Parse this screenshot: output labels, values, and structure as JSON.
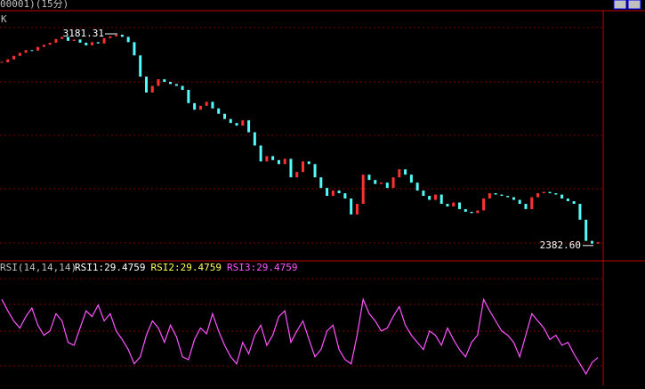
{
  "header": {
    "title": "00001)(15分)"
  },
  "chart_data": [
    {
      "type": "candlestick",
      "title": "K",
      "values": [
        3074,
        3085,
        3098,
        3110,
        3120,
        3118,
        3132,
        3140,
        3148,
        3162,
        3170,
        3155,
        3160,
        3148,
        3138,
        3150,
        3145,
        3165,
        3172,
        3178,
        3170,
        3150,
        3100,
        3020,
        2960,
        2985,
        3010,
        3000,
        2992,
        2985,
        2970,
        2920,
        2895,
        2910,
        2925,
        2900,
        2880,
        2860,
        2845,
        2835,
        2855,
        2810,
        2760,
        2700,
        2720,
        2705,
        2690,
        2710,
        2640,
        2660,
        2700,
        2690,
        2640,
        2600,
        2570,
        2590,
        2580,
        2560,
        2500,
        2540,
        2650,
        2630,
        2615,
        2620,
        2600,
        2640,
        2670,
        2650,
        2620,
        2590,
        2570,
        2555,
        2575,
        2540,
        2530,
        2545,
        2520,
        2510,
        2505,
        2515,
        2560,
        2580,
        2575,
        2570,
        2565,
        2555,
        2540,
        2520,
        2565,
        2580,
        2585,
        2580,
        2575,
        2560,
        2550,
        2540,
        2480,
        2400,
        2390,
        2395
      ],
      "up_color": "#ff3232",
      "down_color": "#54fcfc",
      "ylim": [
        2325,
        3262
      ],
      "high": 3181.31,
      "low": {
        "value": 2382.6,
        "label": "2382.60"
      }
    },
    {
      "type": "line",
      "title": "RSI(14,14,14)",
      "legend": [
        {
          "label": "RSI1:29.4759",
          "color": "#ffffff"
        },
        {
          "label": "RSI2:29.4759",
          "color": "#ffff54"
        },
        {
          "label": "RSI3:29.4759",
          "color": "#ff54ff"
        }
      ],
      "values": [
        70,
        62,
        55,
        50,
        58,
        64,
        52,
        45,
        48,
        60,
        55,
        40,
        38,
        50,
        62,
        58,
        66,
        55,
        60,
        48,
        42,
        35,
        25,
        30,
        45,
        55,
        50,
        40,
        52,
        44,
        30,
        28,
        42,
        50,
        46,
        60,
        48,
        38,
        30,
        25,
        40,
        32,
        45,
        52,
        38,
        45,
        58,
        62,
        40,
        48,
        55,
        42,
        30,
        35,
        48,
        52,
        35,
        28,
        25,
        45,
        70,
        60,
        55,
        48,
        50,
        58,
        65,
        52,
        45,
        40,
        35,
        48,
        45,
        38,
        50,
        42,
        35,
        30,
        40,
        45,
        70,
        62,
        55,
        48,
        45,
        40,
        30,
        45,
        60,
        55,
        50,
        42,
        45,
        38,
        40,
        32,
        25,
        18,
        26,
        29.4759
      ],
      "color": "#ff54ff",
      "ylim": [
        10,
        95
      ]
    }
  ]
}
